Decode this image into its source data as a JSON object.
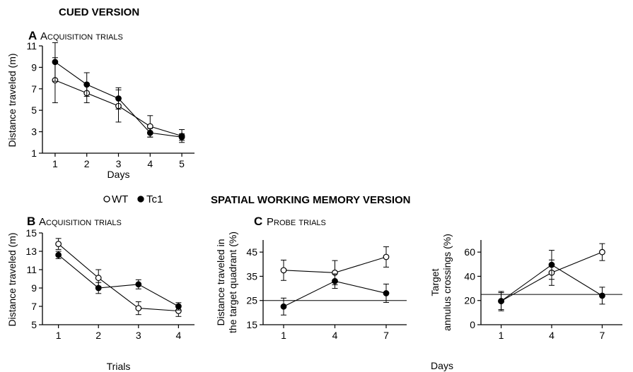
{
  "figure": {
    "cued_heading": "CUED VERSION",
    "spatial_heading": "SPATIAL WORKING MEMORY VERSION",
    "legend": [
      {
        "symbol": "open-circle",
        "label": "WT"
      },
      {
        "symbol": "filled-circle",
        "label": "Tc1"
      }
    ],
    "colors": {
      "ink": "#000000",
      "background": "#ffffff",
      "wt_fill": "#ffffff",
      "tc1_fill": "#000000"
    }
  },
  "chart_data": [
    {
      "panel": "A",
      "type": "line",
      "title_letter": "A",
      "title": "Acquisition trials",
      "xlabel": "Days",
      "ylabel": "Distance traveled (m)",
      "x": [
        1,
        2,
        3,
        4,
        5
      ],
      "xticks": [
        "1",
        "2",
        "3",
        "4",
        "5"
      ],
      "xlim": [
        0.6,
        5.4
      ],
      "ylim": [
        1,
        11
      ],
      "yticks": [
        1,
        3,
        5,
        7,
        9,
        11
      ],
      "series": [
        {
          "name": "WT",
          "marker": "open",
          "values": [
            7.8,
            6.6,
            5.4,
            3.5,
            2.6
          ],
          "errors": [
            2.1,
            0.9,
            1.5,
            1.0,
            0.6
          ]
        },
        {
          "name": "Tc1",
          "marker": "filled",
          "values": [
            9.5,
            7.4,
            6.1,
            2.9,
            2.5
          ],
          "errors": [
            1.8,
            1.1,
            1.0,
            0.4,
            0.3
          ]
        }
      ]
    },
    {
      "panel": "B",
      "type": "line",
      "title_letter": "B",
      "title": "Acquisition trials",
      "xlabel": "Trials",
      "ylabel": "Distance traveled (m)",
      "x": [
        1,
        2,
        3,
        4
      ],
      "xticks": [
        "1",
        "2",
        "3",
        "4"
      ],
      "xlim": [
        0.6,
        4.4
      ],
      "ylim": [
        5,
        15
      ],
      "yticks": [
        5,
        7,
        9,
        11,
        13,
        15
      ],
      "series": [
        {
          "name": "WT",
          "marker": "open",
          "values": [
            13.8,
            10.1,
            6.8,
            6.5
          ],
          "errors": [
            0.6,
            0.9,
            0.7,
            0.6
          ]
        },
        {
          "name": "Tc1",
          "marker": "filled",
          "values": [
            12.6,
            9.0,
            9.4,
            7.0
          ],
          "errors": [
            0.4,
            0.6,
            0.5,
            0.4
          ]
        }
      ]
    },
    {
      "panel": "C1",
      "type": "line",
      "title_letter": "C",
      "title": "Probe trials",
      "xlabel": "",
      "ylabel": "Distance traveled in the target quadrant (%)",
      "ylabel_lines": [
        "Distance traveled in",
        "the target quadrant (%)"
      ],
      "x": [
        1,
        4,
        7
      ],
      "xticks": [
        "1",
        "4",
        "7"
      ],
      "xlim": [
        -0.2,
        8.2
      ],
      "ylim": [
        15,
        50
      ],
      "yticks": [
        15,
        25,
        35,
        45
      ],
      "reference_line": 25,
      "series": [
        {
          "name": "WT",
          "marker": "open",
          "values": [
            37.5,
            36.5,
            43.0
          ],
          "errors": [
            4.2,
            5.0,
            4.2
          ]
        },
        {
          "name": "Tc1",
          "marker": "filled",
          "values": [
            22.5,
            33.0,
            28.0
          ],
          "errors": [
            3.5,
            3.0,
            3.8
          ]
        }
      ]
    },
    {
      "panel": "C2",
      "type": "line",
      "title_letter": "",
      "title": "",
      "xlabel": "Days",
      "ylabel": "Target annulus crossings (%)",
      "ylabel_lines": [
        "Target",
        "annulus crossings (%)"
      ],
      "x": [
        1,
        4,
        7
      ],
      "xticks": [
        "1",
        "4",
        "7"
      ],
      "xlim": [
        -0.2,
        8.2
      ],
      "ylim": [
        0,
        70
      ],
      "yticks": [
        0,
        20,
        40,
        60
      ],
      "reference_line": 25,
      "series": [
        {
          "name": "WT",
          "marker": "open",
          "values": [
            19.5,
            43.0,
            60.0
          ],
          "errors": [
            8.0,
            10.5,
            7.0
          ]
        },
        {
          "name": "Tc1",
          "marker": "filled",
          "values": [
            19.5,
            49.5,
            24.0
          ],
          "errors": [
            7.0,
            12.0,
            7.0
          ]
        }
      ]
    }
  ]
}
